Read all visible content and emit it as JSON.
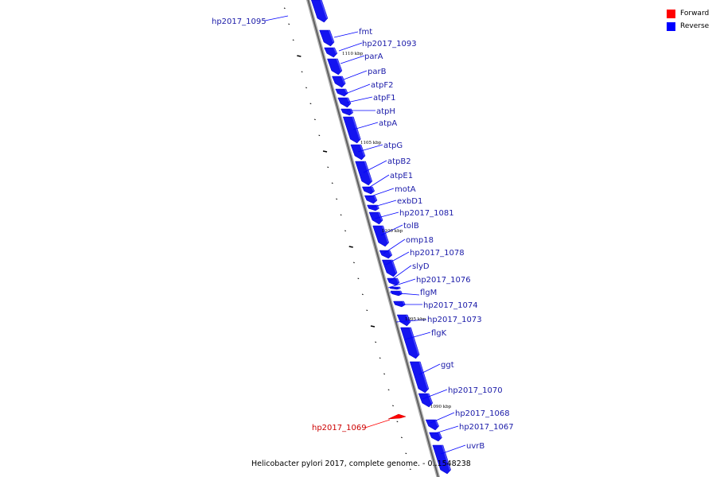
{
  "legend": {
    "items": [
      {
        "label": "Forward",
        "color": "#ff0000"
      },
      {
        "label": "Reverse",
        "color": "#0000ff"
      }
    ]
  },
  "caption": "Helicobacter pylori 2017, complete genome. - 0..1548238",
  "genes": [
    {
      "label": "hp2017_1095",
      "strand": "reverse"
    },
    {
      "label": "fmt",
      "strand": "reverse"
    },
    {
      "label": "hp2017_1093",
      "strand": "reverse"
    },
    {
      "label": "parA",
      "strand": "reverse"
    },
    {
      "label": "parB",
      "strand": "reverse"
    },
    {
      "label": "atpF2",
      "strand": "reverse"
    },
    {
      "label": "atpF1",
      "strand": "reverse"
    },
    {
      "label": "atpH",
      "strand": "reverse"
    },
    {
      "label": "atpA",
      "strand": "reverse"
    },
    {
      "label": "atpG",
      "strand": "reverse"
    },
    {
      "label": "atpB2",
      "strand": "reverse"
    },
    {
      "label": "atpE1",
      "strand": "reverse"
    },
    {
      "label": "motA",
      "strand": "reverse"
    },
    {
      "label": "exbD1",
      "strand": "reverse"
    },
    {
      "label": "hp2017_1081",
      "strand": "reverse"
    },
    {
      "label": "tolB",
      "strand": "reverse"
    },
    {
      "label": "omp18",
      "strand": "reverse"
    },
    {
      "label": "hp2017_1078",
      "strand": "reverse"
    },
    {
      "label": "slyD",
      "strand": "reverse"
    },
    {
      "label": "hp2017_1076",
      "strand": "reverse"
    },
    {
      "label": "flgM",
      "strand": "reverse"
    },
    {
      "label": "hp2017_1074",
      "strand": "reverse"
    },
    {
      "label": "hp2017_1073",
      "strand": "reverse"
    },
    {
      "label": "flgK",
      "strand": "reverse"
    },
    {
      "label": "ggt",
      "strand": "reverse"
    },
    {
      "label": "hp2017_1070",
      "strand": "reverse"
    },
    {
      "label": "hp2017_1069",
      "strand": "forward"
    },
    {
      "label": "hp2017_1068",
      "strand": "reverse"
    },
    {
      "label": "hp2017_1067",
      "strand": "reverse"
    },
    {
      "label": "uvrB",
      "strand": "reverse"
    }
  ],
  "scale_labels": [
    "1110 kbp",
    "1105 kbp",
    "1100 kbp",
    "1095 kbp",
    "1090 kbp"
  ]
}
